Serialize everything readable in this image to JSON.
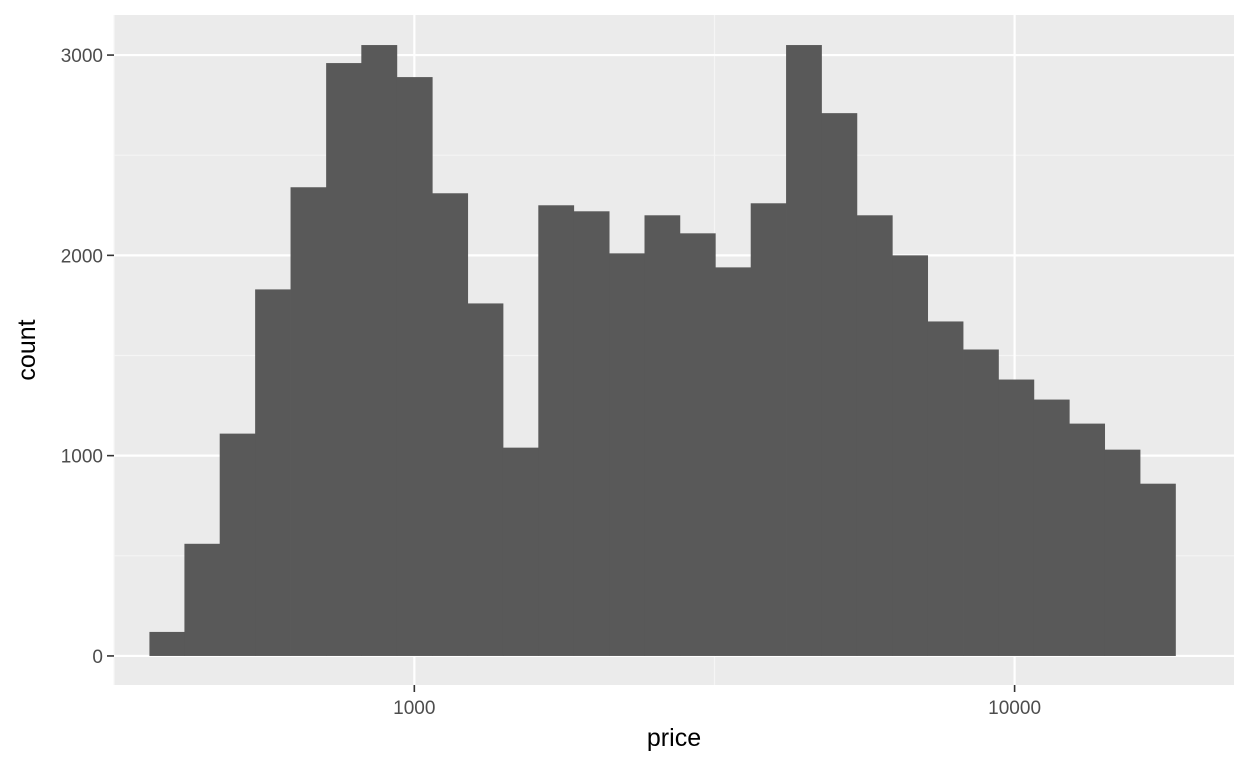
{
  "chart_data": {
    "type": "bar",
    "xlabel": "price",
    "ylabel": "count",
    "x_scale": "log10",
    "xlim": [
      316,
      23200
    ],
    "ylim": [
      -145,
      3200
    ],
    "grid": true,
    "x_ticks": [
      {
        "value": 1000,
        "label": "1000"
      },
      {
        "value": 10000,
        "label": "10000"
      }
    ],
    "y_ticks": [
      {
        "value": 0,
        "label": "0"
      },
      {
        "value": 1000,
        "label": "1000"
      },
      {
        "value": 2000,
        "label": "2000"
      },
      {
        "value": 3000,
        "label": "3000"
      }
    ],
    "bins": [
      {
        "x0": 362,
        "x1": 414,
        "count": 120
      },
      {
        "x0": 414,
        "x1": 474,
        "count": 560
      },
      {
        "x0": 474,
        "x1": 543,
        "count": 1110
      },
      {
        "x0": 543,
        "x1": 622,
        "count": 1830
      },
      {
        "x0": 622,
        "x1": 713,
        "count": 2340
      },
      {
        "x0": 713,
        "x1": 816,
        "count": 2960
      },
      {
        "x0": 816,
        "x1": 935,
        "count": 3050
      },
      {
        "x0": 935,
        "x1": 1071,
        "count": 2890
      },
      {
        "x0": 1071,
        "x1": 1227,
        "count": 2310
      },
      {
        "x0": 1227,
        "x1": 1405,
        "count": 1760
      },
      {
        "x0": 1405,
        "x1": 1609,
        "count": 1040
      },
      {
        "x0": 1609,
        "x1": 1843,
        "count": 2250
      },
      {
        "x0": 1843,
        "x1": 2111,
        "count": 2220
      },
      {
        "x0": 2111,
        "x1": 2418,
        "count": 2010
      },
      {
        "x0": 2418,
        "x1": 2769,
        "count": 2200
      },
      {
        "x0": 2769,
        "x1": 3172,
        "count": 2110
      },
      {
        "x0": 3172,
        "x1": 3634,
        "count": 1940
      },
      {
        "x0": 3634,
        "x1": 4162,
        "count": 2260
      },
      {
        "x0": 4162,
        "x1": 4767,
        "count": 3050
      },
      {
        "x0": 4767,
        "x1": 5460,
        "count": 2710
      },
      {
        "x0": 5460,
        "x1": 6254,
        "count": 2200
      },
      {
        "x0": 6254,
        "x1": 7163,
        "count": 2000
      },
      {
        "x0": 7163,
        "x1": 8205,
        "count": 1670
      },
      {
        "x0": 8205,
        "x1": 9398,
        "count": 1530
      },
      {
        "x0": 9398,
        "x1": 10765,
        "count": 1380
      },
      {
        "x0": 10765,
        "x1": 12331,
        "count": 1280
      },
      {
        "x0": 12331,
        "x1": 14124,
        "count": 1160
      },
      {
        "x0": 14124,
        "x1": 16178,
        "count": 1030
      },
      {
        "x0": 16178,
        "x1": 18531,
        "count": 860
      }
    ],
    "colors": {
      "panel_background": "#ebebeb",
      "grid_major": "#ffffff",
      "grid_minor": "#f5f5f5",
      "bar_fill": "#595959",
      "tick_mark": "#333333"
    }
  }
}
